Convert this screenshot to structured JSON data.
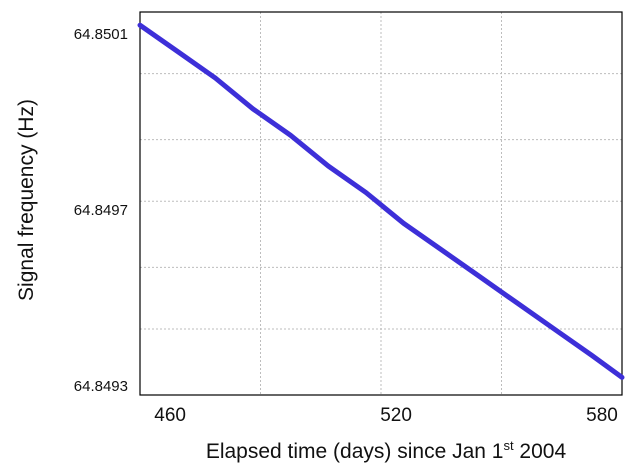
{
  "chart_data": {
    "type": "line",
    "xlabel": {
      "before": "Elapsed time (days) since Jan 1",
      "sup": "st",
      "after": " 2004"
    },
    "ylabel": "Signal frequency (Hz)",
    "xlim": [
      452,
      580
    ],
    "ylim": [
      64.84928,
      64.85015
    ],
    "x_ticks": [
      {
        "value": 460,
        "label": "460"
      },
      {
        "value": 520,
        "label": "520"
      },
      {
        "value": 580,
        "label": "580"
      }
    ],
    "y_ticks": [
      {
        "value": 64.8501,
        "label": "64.8501"
      },
      {
        "value": 64.8497,
        "label": "64.8497"
      },
      {
        "value": 64.8493,
        "label": "64.8493"
      }
    ],
    "grid": true,
    "grid_x": [
      452,
      484,
      516,
      548,
      580
    ],
    "grid_y": [
      64.84928,
      64.84943,
      64.84957,
      64.84972,
      64.84986,
      64.85001,
      64.85015
    ],
    "series": [
      {
        "color": "#3d2fd8",
        "x": [
          452,
          462,
          472,
          482,
          492,
          502,
          512,
          522,
          532,
          542,
          552,
          562,
          572,
          580
        ],
        "y": [
          64.85012,
          64.85006,
          64.85,
          64.84993,
          64.84987,
          64.8498,
          64.84974,
          64.84967,
          64.84961,
          64.84955,
          64.84949,
          64.84943,
          64.84937,
          64.84932
        ]
      }
    ]
  }
}
